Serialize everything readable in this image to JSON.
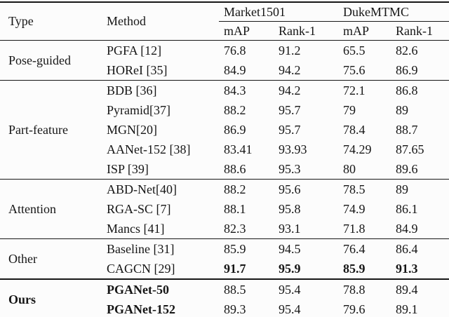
{
  "colors": {
    "background": "#fcfcfc",
    "text": "#161616",
    "rule": "#161616"
  },
  "table": {
    "header": {
      "type": "Type",
      "method": "Method",
      "groups": [
        {
          "label": "Market1501"
        },
        {
          "label": "DukeMTMC"
        }
      ],
      "subheaders": [
        "mAP",
        "Rank-1",
        "mAP",
        "Rank-1"
      ]
    },
    "sections": [
      {
        "type": "Pose-guided",
        "rows": [
          {
            "method": "PGFA [12]",
            "values": [
              "76.8",
              "91.2",
              "65.5",
              "82.6"
            ]
          },
          {
            "method": "HOReI [35]",
            "values": [
              "84.9",
              "94.2",
              "75.6",
              "86.9"
            ]
          }
        ]
      },
      {
        "type": "Part-feature",
        "rows": [
          {
            "method": "BDB [36]",
            "values": [
              "84.3",
              "94.2",
              "72.1",
              "86.8"
            ]
          },
          {
            "method": "Pyramid[37]",
            "values": [
              "88.2",
              "95.7",
              "79",
              "89"
            ]
          },
          {
            "method": "MGN[20]",
            "values": [
              "86.9",
              "95.7",
              "78.4",
              "88.7"
            ]
          },
          {
            "method": "AANet-152 [38]",
            "values": [
              "83.41",
              "93.93",
              "74.29",
              "87.65"
            ]
          },
          {
            "method": "ISP [39]",
            "values": [
              "88.6",
              "95.3",
              "80",
              "89.6"
            ]
          }
        ]
      },
      {
        "type": "Attention",
        "rows": [
          {
            "method": "ABD-Net[40]",
            "values": [
              "88.2",
              "95.6",
              "78.5",
              "89"
            ]
          },
          {
            "method": "RGA-SC [7]",
            "values": [
              "88.1",
              "95.8",
              "74.9",
              "86.1"
            ]
          },
          {
            "method": "Mancs [41]",
            "values": [
              "82.3",
              "93.1",
              "71.8",
              "84.9"
            ]
          }
        ]
      },
      {
        "type": "Other",
        "rows": [
          {
            "method": "Baseline [31]",
            "values": [
              "85.9",
              "94.5",
              "76.4",
              "86.4"
            ]
          },
          {
            "method": "CAGCN [29]",
            "values": [
              "91.7",
              "95.9",
              "85.9",
              "91.3"
            ],
            "bold_values": true
          }
        ]
      },
      {
        "type": "Ours",
        "type_bold": true,
        "rows": [
          {
            "method": "PGANet-50",
            "bold_method": true,
            "values": [
              "88.5",
              "95.4",
              "78.8",
              "89.4"
            ]
          },
          {
            "method": "PGANet-152",
            "bold_method": true,
            "values": [
              "89.3",
              "95.4",
              "79.6",
              "89.1"
            ]
          }
        ]
      }
    ]
  }
}
